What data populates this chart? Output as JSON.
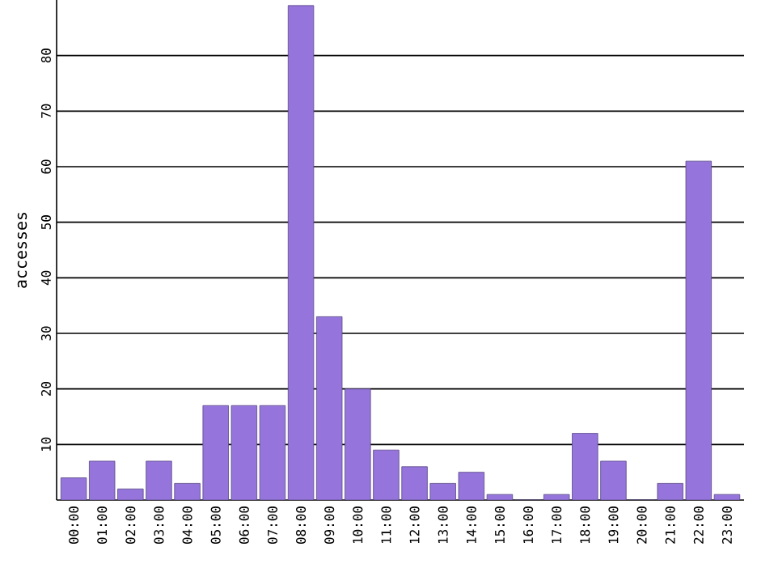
{
  "chart_data": {
    "type": "bar",
    "ylabel": "accesses",
    "categories": [
      "00:00",
      "01:00",
      "02:00",
      "03:00",
      "04:00",
      "05:00",
      "06:00",
      "07:00",
      "08:00",
      "09:00",
      "10:00",
      "11:00",
      "12:00",
      "13:00",
      "14:00",
      "15:00",
      "16:00",
      "17:00",
      "18:00",
      "19:00",
      "20:00",
      "21:00",
      "22:00",
      "23:00"
    ],
    "values": [
      4,
      7,
      2,
      7,
      3,
      17,
      17,
      17,
      89,
      33,
      20,
      9,
      6,
      3,
      5,
      1,
      0,
      1,
      12,
      7,
      0,
      3,
      61,
      1
    ],
    "color": "#9575dc",
    "ylim": [
      0,
      90
    ],
    "yticks": [
      10,
      20,
      30,
      40,
      50,
      60,
      70,
      80
    ],
    "grid": "y"
  }
}
